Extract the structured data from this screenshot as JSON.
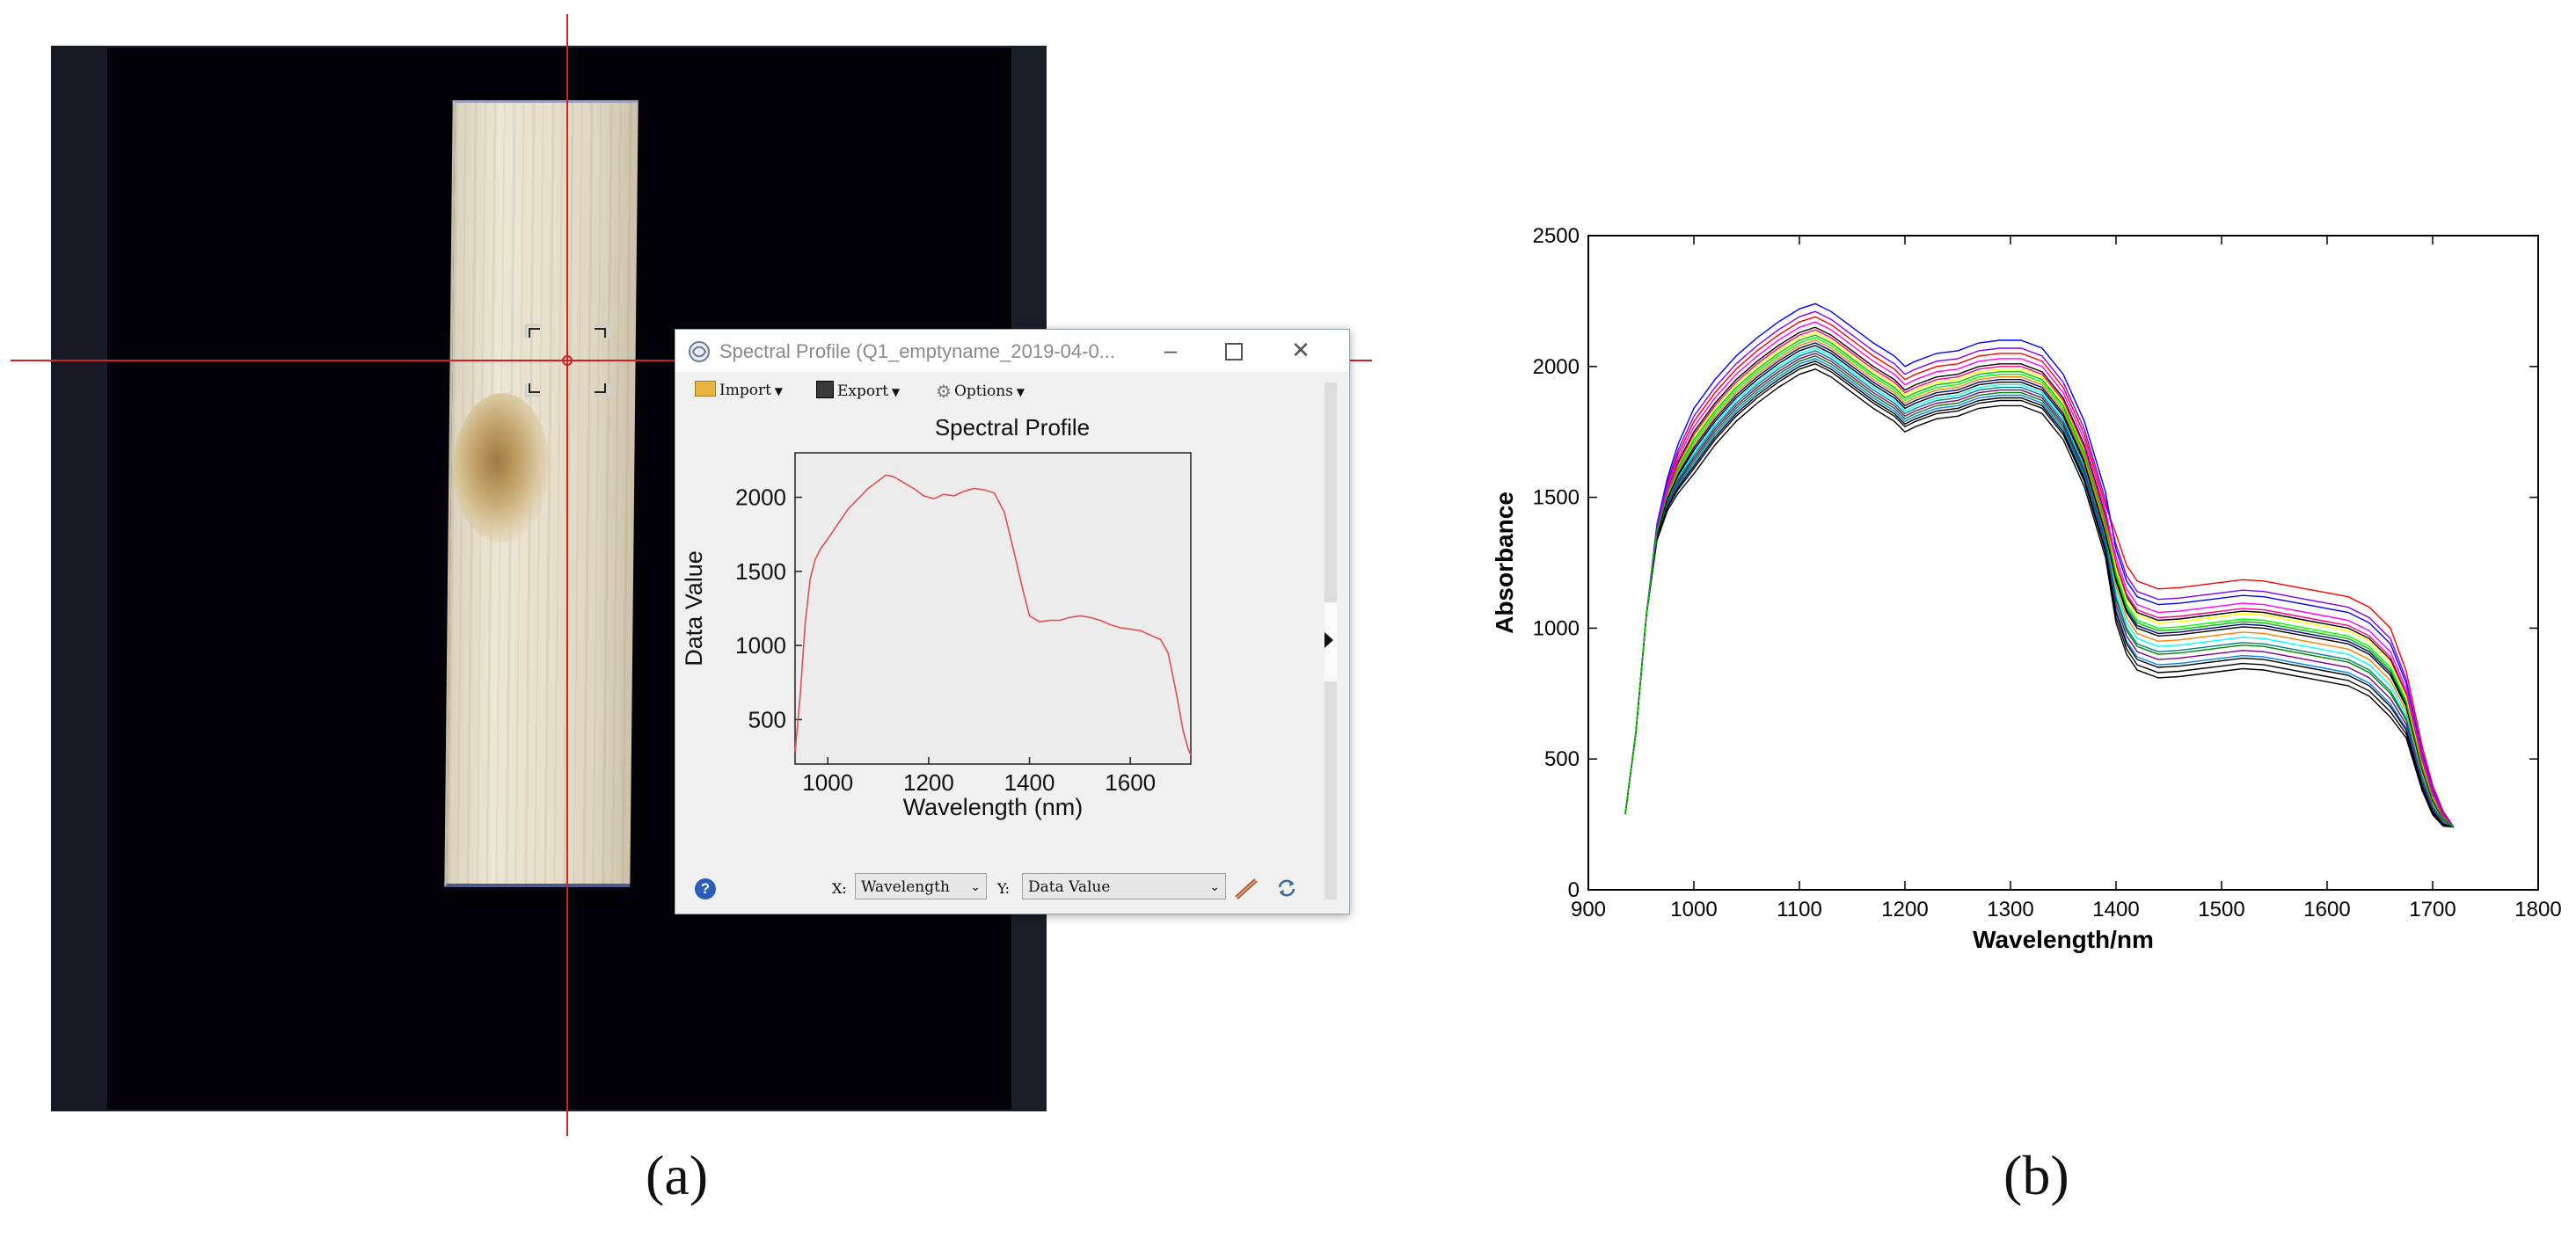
{
  "captions": {
    "a": "(a)",
    "b": "(b)"
  },
  "window": {
    "title": "Spectral Profile (Q1_emptyname_2019-04-0...",
    "minimize_icon": "minimize-icon",
    "maximize_icon": "maximize-icon",
    "close_icon": "close-icon",
    "toolbar": {
      "import_label": "Import",
      "export_label": "Export",
      "options_label": "Options"
    },
    "bottom": {
      "x_prefix": "X:",
      "x_value": "Wavelength",
      "y_prefix": "Y:",
      "y_value": "Data Value",
      "help_icon": "help-icon"
    }
  },
  "colors": {
    "crosshair": "#d42020",
    "profile_line": "#e05050",
    "window_plot_bg": "#ececec"
  },
  "chart_data": [
    {
      "type": "line",
      "title": "Spectral Profile",
      "xlabel": "Wavelength (nm)",
      "ylabel": "Data Value",
      "xlim": [
        935,
        1720
      ],
      "ylim": [
        200,
        2300
      ],
      "xticks": [
        1000,
        1200,
        1400,
        1600
      ],
      "yticks": [
        500,
        1000,
        1500,
        2000
      ],
      "series": [
        {
          "color": "#e05050",
          "x": [
            935,
            945,
            955,
            965,
            975,
            985,
            1000,
            1020,
            1040,
            1060,
            1080,
            1100,
            1115,
            1130,
            1150,
            1170,
            1190,
            1210,
            1230,
            1250,
            1270,
            1290,
            1310,
            1330,
            1350,
            1370,
            1385,
            1400,
            1420,
            1440,
            1460,
            1480,
            1500,
            1520,
            1540,
            1560,
            1580,
            1600,
            1620,
            1640,
            1660,
            1675,
            1690,
            1705,
            1715,
            1720
          ],
          "y": [
            280,
            650,
            1150,
            1450,
            1580,
            1650,
            1720,
            1820,
            1920,
            1990,
            2060,
            2110,
            2150,
            2140,
            2100,
            2060,
            2010,
            1990,
            2020,
            2010,
            2040,
            2060,
            2050,
            2030,
            1900,
            1620,
            1400,
            1200,
            1160,
            1170,
            1170,
            1190,
            1200,
            1190,
            1170,
            1140,
            1120,
            1110,
            1100,
            1070,
            1040,
            950,
            700,
            420,
            300,
            260
          ]
        }
      ]
    },
    {
      "type": "line",
      "xlabel": "Wavelength/nm",
      "ylabel": "Absorbance",
      "xlim": [
        900,
        1800
      ],
      "ylim": [
        0,
        2500
      ],
      "xticks": [
        900,
        1000,
        1100,
        1200,
        1300,
        1400,
        1500,
        1600,
        1700,
        1800
      ],
      "yticks": [
        0,
        500,
        1000,
        1500,
        2000,
        2500
      ],
      "x": [
        935,
        945,
        955,
        965,
        975,
        985,
        1000,
        1020,
        1040,
        1060,
        1080,
        1100,
        1115,
        1130,
        1150,
        1170,
        1190,
        1200,
        1210,
        1230,
        1250,
        1270,
        1290,
        1310,
        1330,
        1350,
        1370,
        1390,
        1400,
        1410,
        1420,
        1440,
        1460,
        1480,
        1500,
        1520,
        1540,
        1560,
        1580,
        1600,
        1620,
        1640,
        1660,
        1675,
        1690,
        1700,
        1710,
        1720
      ],
      "base": [
        290,
        600,
        1050,
        1350,
        1480,
        1560,
        1650,
        1760,
        1850,
        1920,
        1980,
        2030,
        2050,
        2020,
        1960,
        1900,
        1850,
        1810,
        1830,
        1860,
        1870,
        1900,
        1910,
        1910,
        1880,
        1780,
        1600,
        1330,
        1180,
        1060,
        1000,
        970,
        975,
        985,
        995,
        1005,
        1000,
        985,
        970,
        955,
        940,
        900,
        820,
        700,
        460,
        340,
        270,
        240
      ],
      "series": [
        {
          "color": "#ff0000",
          "offset": 140,
          "lateOffset": 180
        },
        {
          "color": "#0000ff",
          "offset": 190,
          "lateOffset": 120
        },
        {
          "color": "#000000",
          "offset": 100,
          "lateOffset": 60
        },
        {
          "color": "#00ff00",
          "offset": 60,
          "lateOffset": 30
        },
        {
          "color": "#ff00ff",
          "offset": 120,
          "lateOffset": 90
        },
        {
          "color": "#00ffff",
          "offset": 20,
          "lateOffset": -40
        },
        {
          "color": "#ffff00",
          "offset": 80,
          "lateOffset": 50
        },
        {
          "color": "#000080",
          "offset": 40,
          "lateOffset": 10
        },
        {
          "color": "#008000",
          "offset": -10,
          "lateOffset": -70
        },
        {
          "color": "#800080",
          "offset": 0,
          "lateOffset": -90
        },
        {
          "color": "#000000",
          "offset": -40,
          "lateOffset": -140
        },
        {
          "color": "#ff8000",
          "offset": 50,
          "lateOffset": -20
        },
        {
          "color": "#0080ff",
          "offset": -20,
          "lateOffset": -110
        },
        {
          "color": "#000000",
          "offset": -60,
          "lateOffset": -160
        },
        {
          "color": "#ff0080",
          "offset": 90,
          "lateOffset": 70
        },
        {
          "color": "#008080",
          "offset": 10,
          "lateOffset": -60
        },
        {
          "color": "#000000",
          "offset": 30,
          "lateOffset": 0
        },
        {
          "color": "#8000ff",
          "offset": 160,
          "lateOffset": 140
        },
        {
          "color": "#000000",
          "offset": -30,
          "lateOffset": -120
        },
        {
          "color": "#00c000",
          "offset": 70,
          "lateOffset": 20
        }
      ]
    }
  ]
}
